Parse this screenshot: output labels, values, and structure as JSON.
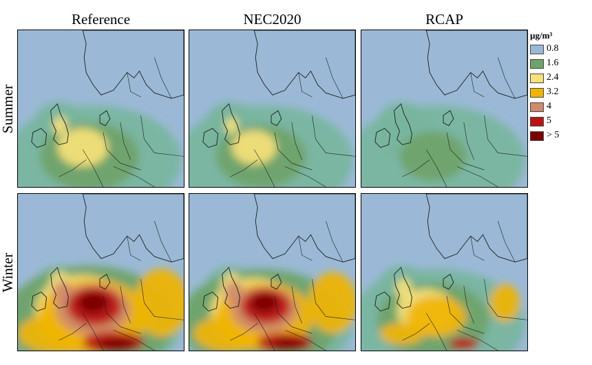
{
  "columns": [
    {
      "label": "Reference"
    },
    {
      "label": "NEC2020"
    },
    {
      "label": "RCAP"
    }
  ],
  "rows": [
    {
      "label": "Summer"
    },
    {
      "label": "Winter"
    }
  ],
  "legend": {
    "title": "µg/m³",
    "items": [
      {
        "label": "0.8",
        "color": "#9bb9d6"
      },
      {
        "label": "1.6",
        "color": "#6fa36a"
      },
      {
        "label": "2.4",
        "color": "#f6e27a"
      },
      {
        "label": "3.2",
        "color": "#f0b400"
      },
      {
        "label": "4",
        "color": "#cf8a6f"
      },
      {
        "label": "5",
        "color": "#b81414"
      },
      {
        "label": "> 5",
        "color": "#7a0000"
      }
    ]
  },
  "colors": {
    "sea": "#9bb9d6",
    "low_green": "#78b59e",
    "green": "#6fa36a",
    "light_yellow": "#f6e27a",
    "yellow": "#f0b400",
    "salmon": "#cf8a6f",
    "red": "#b81414",
    "dark_red": "#7a0000",
    "border_lines": "#1a1a1a"
  },
  "panels": [
    {
      "row": "Summer",
      "column": "Reference",
      "intensity": 0.45
    },
    {
      "row": "Summer",
      "column": "NEC2020",
      "intensity": 0.38
    },
    {
      "row": "Summer",
      "column": "RCAP",
      "intensity": 0.2
    },
    {
      "row": "Winter",
      "column": "Reference",
      "intensity": 1.0
    },
    {
      "row": "Winter",
      "column": "NEC2020",
      "intensity": 0.9
    },
    {
      "row": "Winter",
      "column": "RCAP",
      "intensity": 0.55
    }
  ]
}
